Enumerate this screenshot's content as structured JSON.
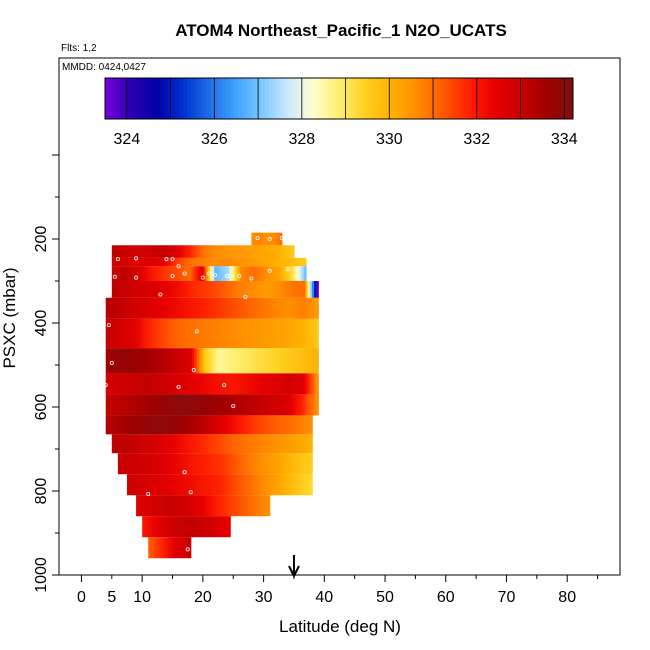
{
  "chart_data": {
    "type": "heatmap",
    "title": "ATOM4 Northeast_Pacific_1 N2O_UCATS",
    "flights_text": "Flts: 1,2",
    "mmdd_text": "MMDD: 0424,0427",
    "xlabel": "Latitude (deg N)",
    "ylabel": "PSXC (mbar)",
    "xlim": [
      0,
      85
    ],
    "ylim": [
      1000,
      0
    ],
    "x_ticks": [
      0,
      5,
      10,
      20,
      30,
      40,
      50,
      60,
      70,
      80
    ],
    "y_ticks": [
      200,
      400,
      600,
      800,
      1000
    ],
    "colorbar": {
      "min": 323.5,
      "max": 334.2,
      "ticks": [
        324,
        326,
        328,
        330,
        332,
        334
      ],
      "colors": [
        "#7b00e0",
        "#2a00b0",
        "#0000a8",
        "#0030d0",
        "#1e6ee8",
        "#3ea0ff",
        "#7cc8ff",
        "#c8e8ff",
        "#ffffd0",
        "#ffee70",
        "#ffd020",
        "#ffb000",
        "#ff8c00",
        "#ff5a00",
        "#ff2000",
        "#e80000",
        "#c80000",
        "#a00000",
        "#801010"
      ]
    },
    "location_marker_lat": 35,
    "grid": false,
    "layers": [
      {
        "p_top": 185,
        "p_bot": 215,
        "lat_start": 28,
        "lat_end": 33,
        "values": [
          330.6,
          330.8,
          330.5,
          330.7,
          331.0
        ]
      },
      {
        "p_top": 215,
        "p_bot": 245,
        "lat_start": 5,
        "lat_end": 35,
        "values": [
          333.2,
          333.0,
          332.8,
          332.9,
          333.1,
          332.6,
          331.8,
          331.0,
          330.6,
          330.5,
          330.4,
          330.3,
          330.2,
          330.0,
          329.6
        ]
      },
      {
        "p_top": 245,
        "p_bot": 265,
        "lat_start": 5,
        "lat_end": 37,
        "values": [
          332.9,
          332.8,
          332.6,
          332.7,
          332.4,
          331.6,
          331.0,
          330.8,
          330.6,
          330.7,
          330.5,
          330.4,
          330.2,
          330.0,
          329.8,
          329.5
        ]
      },
      {
        "p_top": 265,
        "p_bot": 300,
        "lat_start": 5,
        "lat_end": 37,
        "values": [
          333.0,
          333.1,
          332.7,
          332.0,
          331.6,
          331.4,
          331.0,
          332.6,
          326.8,
          327.4,
          330.7,
          331.0,
          330.6,
          330.2,
          329.2,
          327.0
        ]
      },
      {
        "p_top": 300,
        "p_bot": 340,
        "lat_start": 5,
        "lat_end": 39,
        "values": [
          333.2,
          333.0,
          332.8,
          332.7,
          332.5,
          332.2,
          331.8,
          331.6,
          331.4,
          331.1,
          330.8,
          330.6,
          330.4,
          330.6,
          330.9,
          331.0,
          323.8
        ]
      },
      {
        "p_top": 340,
        "p_bot": 390,
        "lat_start": 4,
        "lat_end": 39,
        "values": [
          333.3,
          333.1,
          332.9,
          332.7,
          332.5,
          332.3,
          332.1,
          331.9,
          331.7,
          331.5,
          331.3,
          331.1,
          330.9,
          330.7,
          330.6,
          330.8,
          330.4
        ]
      },
      {
        "p_top": 390,
        "p_bot": 460,
        "lat_start": 4,
        "lat_end": 39,
        "values": [
          333.0,
          332.8,
          332.6,
          331.9,
          331.5,
          331.2,
          331.0,
          330.9,
          330.8,
          330.7,
          330.6,
          330.5,
          330.4,
          330.3,
          330.2,
          330.0,
          329.6
        ]
      },
      {
        "p_top": 460,
        "p_bot": 520,
        "lat_start": 4,
        "lat_end": 39,
        "values": [
          333.6,
          333.8,
          333.7,
          333.5,
          333.3,
          333.0,
          332.6,
          329.6,
          328.6,
          328.8,
          329.0,
          329.2,
          329.4,
          329.6,
          329.8,
          330.0
        ]
      },
      {
        "p_top": 520,
        "p_bot": 570,
        "lat_start": 4,
        "lat_end": 39,
        "values": [
          332.8,
          332.9,
          333.0,
          333.1,
          332.9,
          332.7,
          332.5,
          332.3,
          332.1,
          332.0,
          332.2,
          332.4,
          332.6,
          332.8,
          332.6,
          330.6
        ]
      },
      {
        "p_top": 570,
        "p_bot": 620,
        "lat_start": 4,
        "lat_end": 39,
        "values": [
          333.1,
          333.2,
          333.4,
          333.6,
          333.8,
          334.0,
          333.9,
          333.7,
          333.5,
          333.3,
          333.1,
          332.9,
          332.7,
          331.8,
          330.6
        ]
      },
      {
        "p_top": 620,
        "p_bot": 665,
        "lat_start": 4,
        "lat_end": 38,
        "values": [
          333.3,
          333.5,
          333.7,
          333.9,
          333.9,
          333.7,
          333.4,
          333.0,
          332.5,
          332.0,
          331.6,
          331.3,
          331.1,
          330.9,
          330.6
        ]
      },
      {
        "p_top": 665,
        "p_bot": 710,
        "lat_start": 5,
        "lat_end": 38,
        "values": [
          333.2,
          333.1,
          332.9,
          332.7,
          332.4,
          332.0,
          331.7,
          331.4,
          331.1,
          330.9,
          330.7,
          330.5,
          330.3,
          330.0
        ]
      },
      {
        "p_top": 710,
        "p_bot": 760,
        "lat_start": 6,
        "lat_end": 38,
        "values": [
          333.0,
          332.9,
          332.8,
          332.6,
          332.3,
          332.0,
          331.8,
          331.6,
          331.2,
          330.8,
          330.5,
          330.2,
          329.8,
          329.5
        ]
      },
      {
        "p_top": 760,
        "p_bot": 810,
        "lat_start": 7.5,
        "lat_end": 38,
        "values": [
          332.9,
          332.8,
          332.6,
          332.4,
          332.2,
          332.0,
          331.8,
          331.4,
          331.0,
          330.6,
          330.2,
          329.7,
          329.3
        ]
      },
      {
        "p_top": 810,
        "p_bot": 860,
        "lat_start": 9,
        "lat_end": 31,
        "values": [
          332.6,
          332.8,
          333.0,
          332.8,
          332.4,
          331.8,
          331.4,
          331.0,
          330.6
        ]
      },
      {
        "p_top": 860,
        "p_bot": 910,
        "lat_start": 10,
        "lat_end": 24.5,
        "values": [
          332.0,
          332.6,
          333.0,
          333.1,
          332.8,
          332.4
        ]
      },
      {
        "p_top": 910,
        "p_bot": 960,
        "lat_start": 11,
        "lat_end": 18,
        "values": [
          331.2,
          331.8,
          332.6,
          333.0
        ]
      }
    ],
    "samples": [
      [
        6,
        248
      ],
      [
        9,
        246
      ],
      [
        14,
        248
      ],
      [
        15,
        248
      ],
      [
        16,
        265
      ],
      [
        5.5,
        290
      ],
      [
        9,
        292
      ],
      [
        15,
        288
      ],
      [
        17,
        282
      ],
      [
        20,
        292
      ],
      [
        21,
        282
      ],
      [
        22,
        286
      ],
      [
        24,
        288
      ],
      [
        26,
        288
      ],
      [
        28,
        294
      ],
      [
        31,
        276
      ],
      [
        34,
        272
      ],
      [
        13,
        332
      ],
      [
        27,
        338
      ],
      [
        4.5,
        405
      ],
      [
        19,
        420
      ],
      [
        5,
        495
      ],
      [
        18.5,
        512
      ],
      [
        4,
        548
      ],
      [
        16,
        552
      ],
      [
        23.5,
        548
      ],
      [
        25,
        598
      ],
      [
        4.5,
        680
      ],
      [
        17,
        755
      ],
      [
        11,
        807
      ],
      [
        18,
        803
      ],
      [
        17.5,
        939
      ],
      [
        29,
        198
      ],
      [
        31,
        200
      ],
      [
        33,
        198
      ]
    ]
  }
}
